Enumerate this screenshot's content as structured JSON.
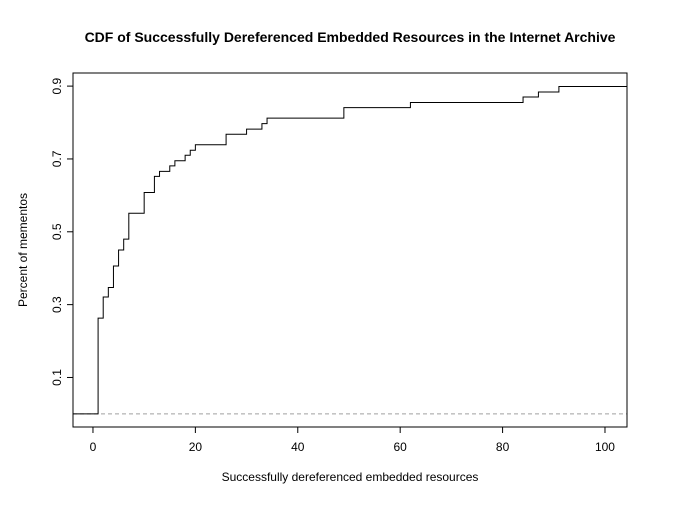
{
  "chart_data": {
    "type": "line",
    "step": true,
    "title": "CDF of Successfully Dereferenced Embedded Resources in the Internet Archive",
    "xlabel": "Successfully dereferenced embedded resources",
    "ylabel": "Percent of mementos",
    "xlim": [
      -3.9,
      104.3
    ],
    "ylim": [
      -0.036,
      0.936
    ],
    "x_ticks": [
      0,
      20,
      40,
      60,
      80,
      100
    ],
    "y_ticks": [
      0.1,
      0.3,
      0.5,
      0.7,
      0.9
    ],
    "x_tick_labels": [
      "0",
      "20",
      "40",
      "60",
      "80",
      "100"
    ],
    "y_tick_labels": [
      "0.1",
      "0.3",
      "0.5",
      "0.7",
      "0.9"
    ],
    "grid": false,
    "reference_line": {
      "y": 0,
      "style": "dashed",
      "color": "#a0a0a0"
    },
    "series": [
      {
        "color": "#000000",
        "points": [
          {
            "x": -3.9,
            "y": 0.0
          },
          {
            "x": 1,
            "y": 0.0
          },
          {
            "x": 1,
            "y": 0.263
          },
          {
            "x": 2,
            "y": 0.321
          },
          {
            "x": 3,
            "y": 0.347
          },
          {
            "x": 4,
            "y": 0.406
          },
          {
            "x": 5,
            "y": 0.45
          },
          {
            "x": 6,
            "y": 0.48
          },
          {
            "x": 7,
            "y": 0.551
          },
          {
            "x": 10,
            "y": 0.608
          },
          {
            "x": 12,
            "y": 0.652
          },
          {
            "x": 13,
            "y": 0.666
          },
          {
            "x": 15,
            "y": 0.681
          },
          {
            "x": 16,
            "y": 0.695
          },
          {
            "x": 18,
            "y": 0.71
          },
          {
            "x": 19,
            "y": 0.724
          },
          {
            "x": 20,
            "y": 0.739
          },
          {
            "x": 26,
            "y": 0.768
          },
          {
            "x": 30,
            "y": 0.782
          },
          {
            "x": 33,
            "y": 0.797
          },
          {
            "x": 34,
            "y": 0.812
          },
          {
            "x": 49,
            "y": 0.841
          },
          {
            "x": 62,
            "y": 0.855
          },
          {
            "x": 84,
            "y": 0.87
          },
          {
            "x": 87,
            "y": 0.884
          },
          {
            "x": 91,
            "y": 0.899
          },
          {
            "x": 104.3,
            "y": 0.899
          }
        ]
      }
    ]
  }
}
